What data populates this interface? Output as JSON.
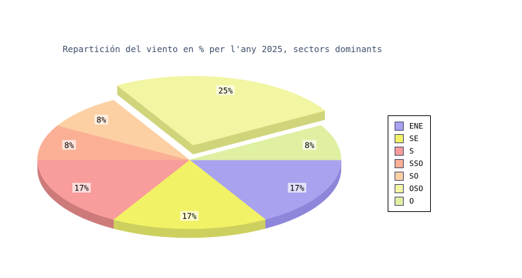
{
  "chart_data": {
    "type": "pie",
    "style": "3d-exploded-pie",
    "title": "Repartición del viento en % per l'any 2025, sectors dominants",
    "title_color": "#3e4f6b",
    "background_color": "#ffffff",
    "legend_position": "right",
    "start_angle_deg": 0,
    "direction": "clockwise",
    "total_weight_twelfths": 12,
    "series": [
      {
        "name": "ENE",
        "label": "17%",
        "value_pct": 17,
        "weight_twelfths": 2,
        "color": "#a9a3ef",
        "side_color": "#8e86da",
        "exploded": false
      },
      {
        "name": "SE",
        "label": "17%",
        "value_pct": 17,
        "weight_twelfths": 2,
        "color": "#f2f266",
        "side_color": "#cdd05e",
        "exploded": false
      },
      {
        "name": "S",
        "label": "17%",
        "value_pct": 17,
        "weight_twelfths": 2,
        "color": "#f89c9c",
        "side_color": "#cc7a7a",
        "exploded": false
      },
      {
        "name": "SSO",
        "label": "8%",
        "value_pct": 8,
        "weight_twelfths": 1,
        "color": "#fbb095",
        "side_color": "#d68f78",
        "exploded": false
      },
      {
        "name": "SO",
        "label": "8%",
        "value_pct": 8,
        "weight_twelfths": 1,
        "color": "#fcd0a3",
        "side_color": "#d8ad80",
        "exploded": false
      },
      {
        "name": "OSO",
        "label": "25%",
        "value_pct": 25,
        "weight_twelfths": 3,
        "color": "#f2f5a1",
        "side_color": "#d0d47a",
        "exploded": true
      },
      {
        "name": "O",
        "label": "8%",
        "value_pct": 8,
        "weight_twelfths": 1,
        "color": "#dff0a3",
        "side_color": "#bdd182",
        "exploded": false
      }
    ],
    "slice_label_text_color": "#000000",
    "slice_label_background": "rgba(255,255,255,0.66)"
  }
}
